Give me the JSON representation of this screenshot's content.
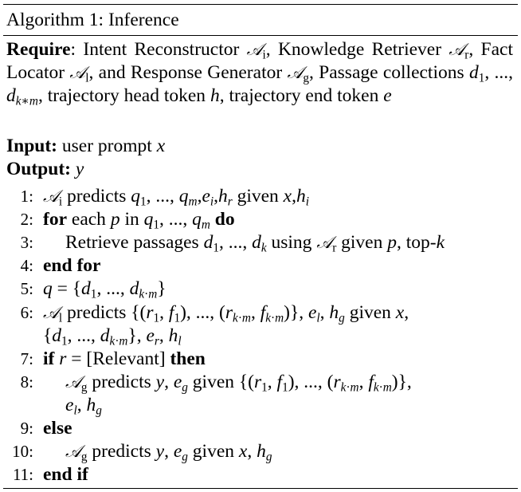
{
  "algorithm": {
    "title": "Algorithm 1: Inference",
    "require_label": "Require",
    "require_text": ": Intent Reconstructor 𝒜ᵢ, Knowledge Retriever 𝒜ᵣ, Fact Locator 𝒜ₗ, and Response Generator 𝒜_g, Passage collections d₁, ..., d_{k∗m}, trajectory head token h, trajectory end token e",
    "input_label": "Input:",
    "input_text": "user prompt x",
    "output_label": "Output:",
    "output_text": "y",
    "lines": [
      {
        "n": "1:",
        "text": "𝒜ᵢ predicts q₁, ..., qₘ,eᵢ,hᵣ given x,hᵢ"
      },
      {
        "n": "2:",
        "text": "for each p in q₁, ..., qₘ do"
      },
      {
        "n": "3:",
        "text": "Retrieve passages d₁, ..., d_k using 𝒜ᵣ given p, top-k"
      },
      {
        "n": "4:",
        "text": "end for"
      },
      {
        "n": "5:",
        "text": "q = {d₁, ..., d_{k·m}}"
      },
      {
        "n": "6:",
        "text": "𝒜ₗ predicts {(r₁, f₁), ..., (r_{k·m}, f_{k·m})}, eₗ, h_g given x, {d₁, ..., d_{k·m}}, eᵣ, hₗ"
      },
      {
        "n": "7:",
        "text": "if r = [Relevant] then"
      },
      {
        "n": "8:",
        "text": "𝒜_g predicts y, e_g given {(r₁, f₁), ..., (r_{k·m}, f_{k·m})}, eₗ, h_g"
      },
      {
        "n": "9:",
        "text": "else"
      },
      {
        "n": "10:",
        "text": "𝒜_g predicts y, e_g given x, h_g"
      },
      {
        "n": "11:",
        "text": "end if"
      }
    ]
  }
}
